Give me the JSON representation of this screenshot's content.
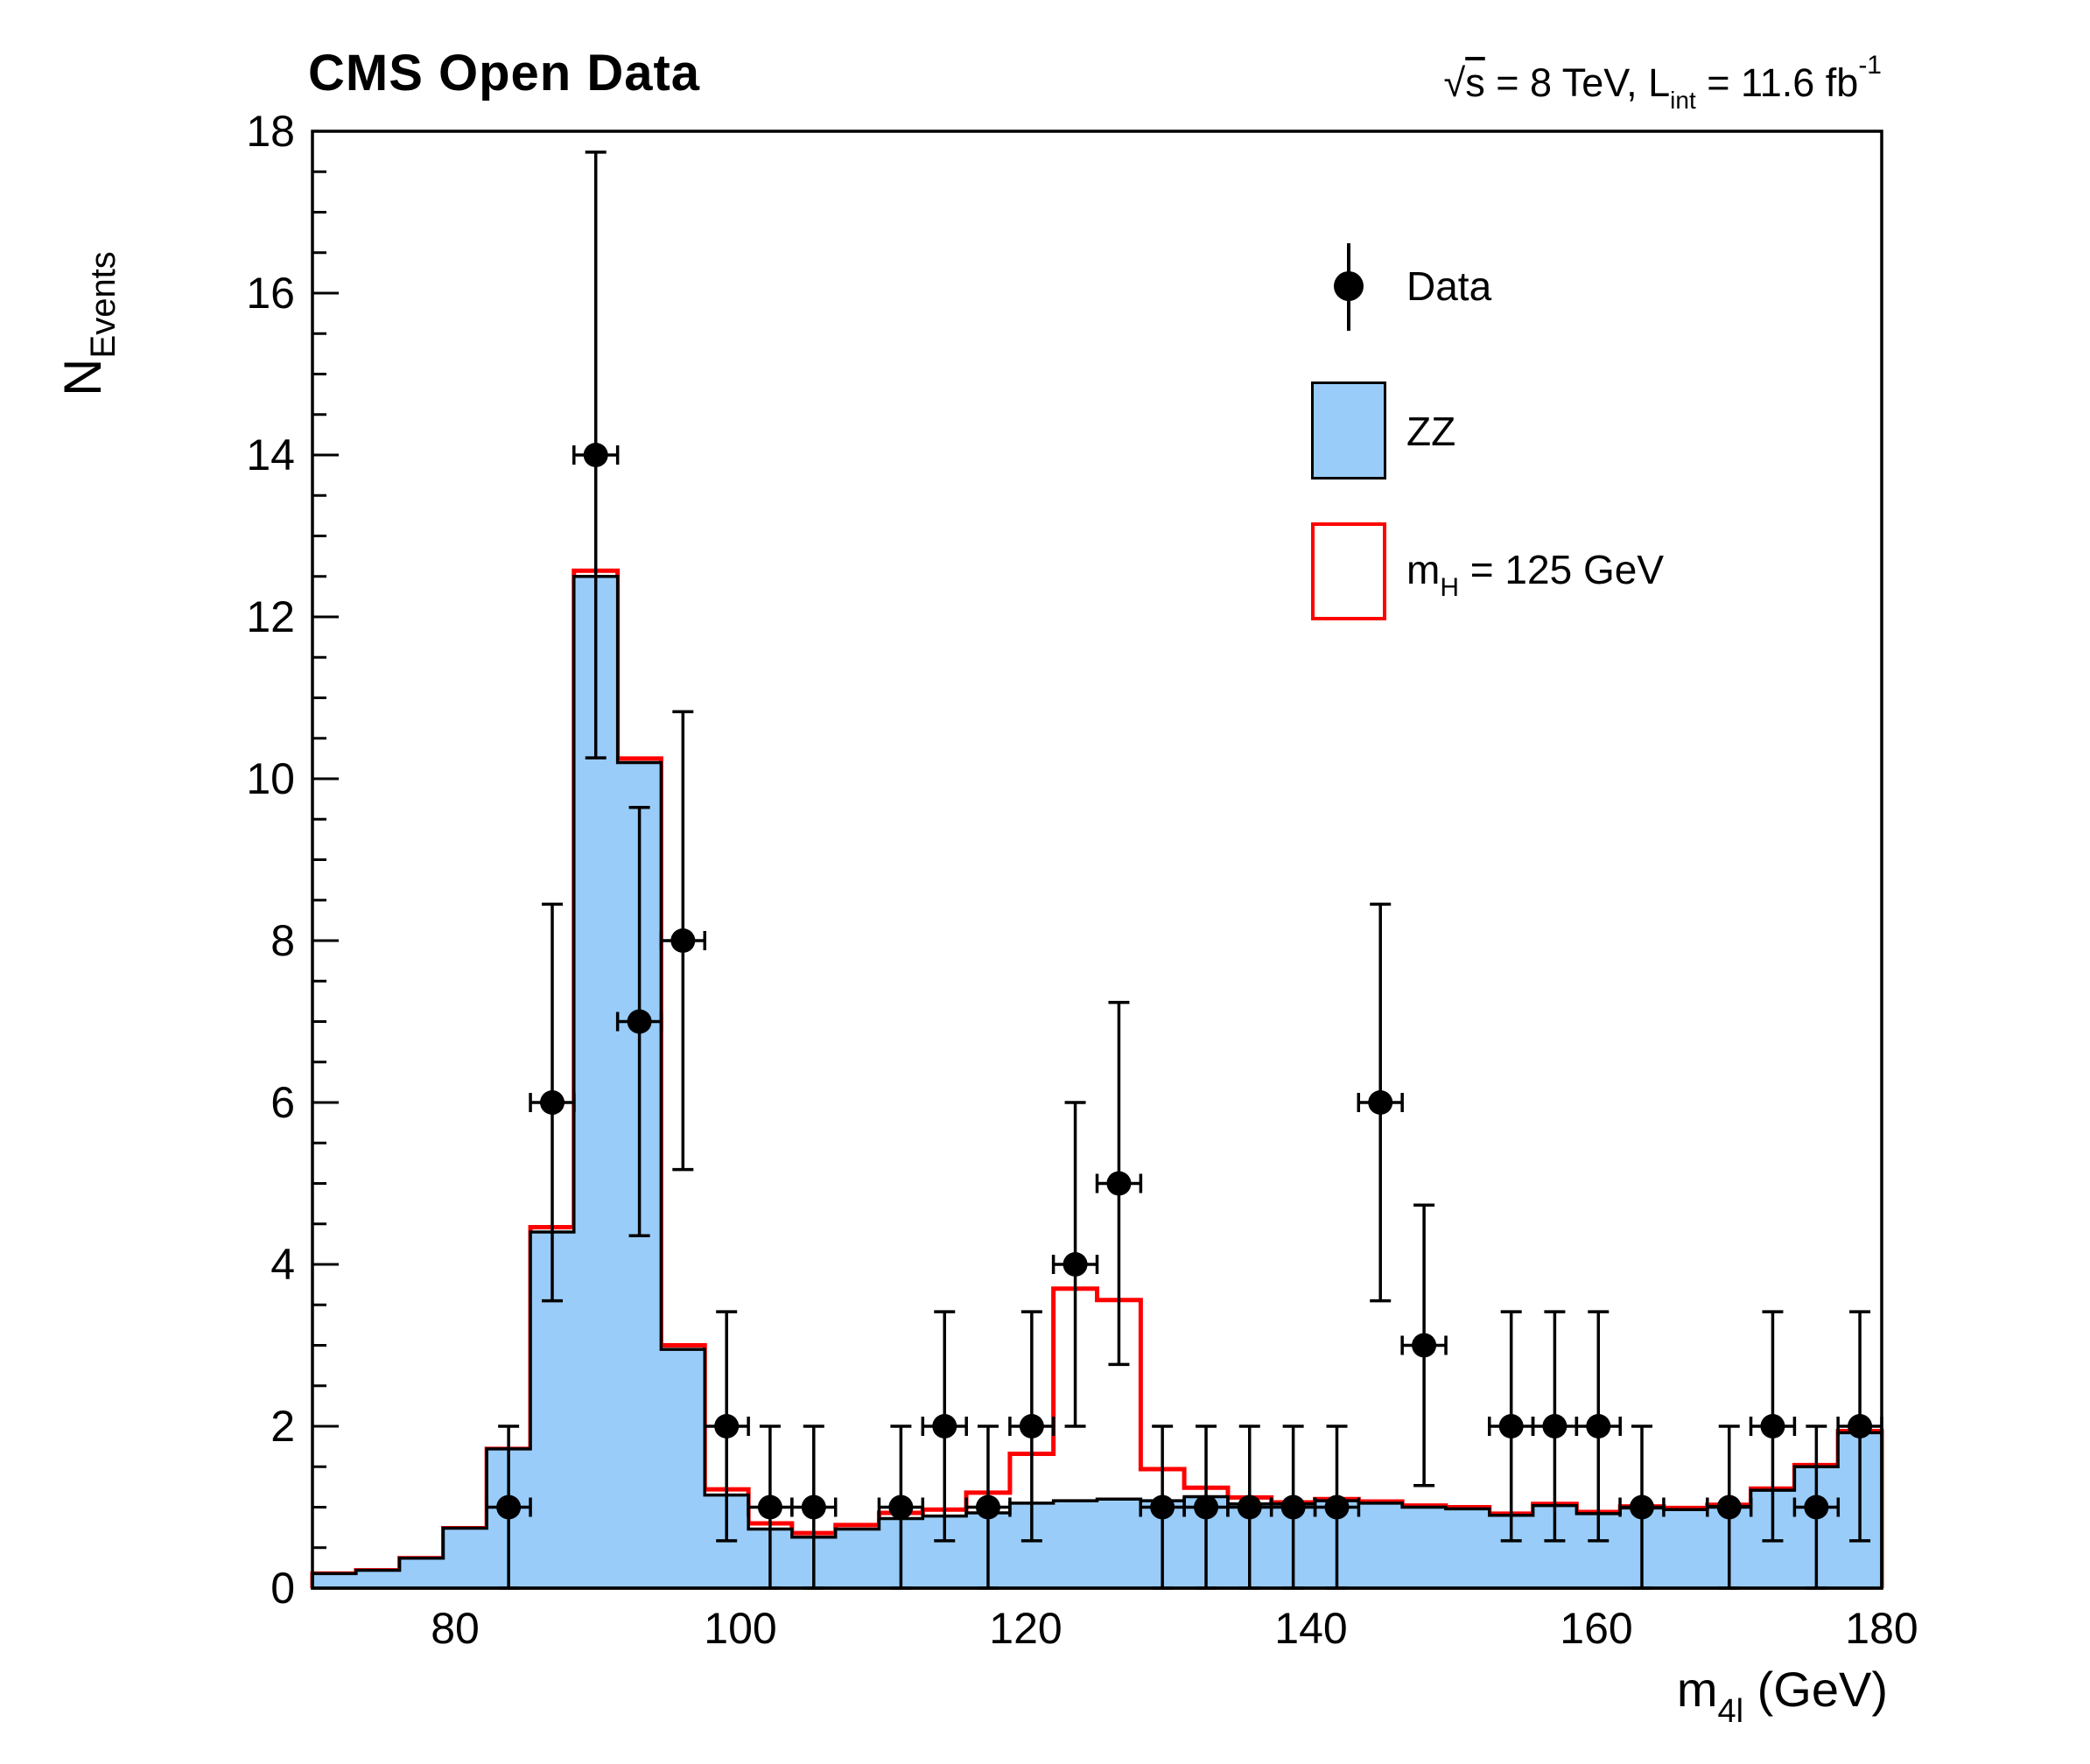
{
  "header": {
    "title": "CMS Open Data",
    "lumi": {
      "full_text": "sqrt(s) = 8 TeV, L_int = 11.6 fb^-1",
      "sqrt_sign": "√",
      "sqrt_arg": "s",
      "after_sqrt": " = 8 TeV, L",
      "sub": "int",
      "after_sub": " = 11.6 fb",
      "sup": "-1"
    }
  },
  "axes": {
    "x": {
      "label_main": "m",
      "label_sub": "4l",
      "label_tail": " (GeV)",
      "min": 70,
      "max": 180,
      "major_ticks": [
        80,
        100,
        120,
        140,
        160,
        180
      ],
      "minor_step": 4
    },
    "y": {
      "label_main": "N",
      "label_sub": "Events",
      "min": 0,
      "max": 18,
      "major_ticks": [
        0,
        2,
        4,
        6,
        8,
        10,
        12,
        14,
        16,
        18
      ],
      "minor_step": 0.5
    }
  },
  "legend": {
    "entries": [
      {
        "type": "marker",
        "label": "Data"
      },
      {
        "type": "filled-box",
        "label": "ZZ",
        "fill": "#99ccf9",
        "border": "#000000"
      },
      {
        "type": "outline-box",
        "label_main": "m",
        "label_sub": "H",
        "label_tail": " = 125 GeV",
        "fill": "#ffffff",
        "border": "#ff0000"
      }
    ]
  },
  "chart_data": {
    "type": "bar",
    "subtype": "histogram-with-data-points",
    "title": "CMS Open Data",
    "xlabel": "m_4l (GeV)",
    "ylabel": "N_Events",
    "xlim": [
      70,
      180
    ],
    "ylim": [
      0,
      18
    ],
    "grid": false,
    "legend_position": "top-right",
    "bin_edges": [
      70,
      73.06,
      76.11,
      79.17,
      82.22,
      85.28,
      88.33,
      91.39,
      94.44,
      97.5,
      100.56,
      103.61,
      106.67,
      109.72,
      112.78,
      115.83,
      118.89,
      121.94,
      125,
      128.06,
      131.11,
      134.17,
      137.22,
      140.28,
      143.33,
      146.39,
      149.44,
      152.5,
      155.56,
      158.61,
      161.67,
      164.72,
      167.78,
      170.83,
      173.89,
      176.94,
      180
    ],
    "series": [
      {
        "name": "ZZ",
        "type": "filled_histogram",
        "fill_color": "#99ccf9",
        "line_color": "#000000",
        "values": [
          0.18,
          0.22,
          0.37,
          0.74,
          1.72,
          4.4,
          12.5,
          10.2,
          2.95,
          1.15,
          0.73,
          0.63,
          0.73,
          0.86,
          0.89,
          0.93,
          1.05,
          1.08,
          1.1,
          1.08,
          1.13,
          1.04,
          1.04,
          1.08,
          1.05,
          1.0,
          0.98,
          0.9,
          1.02,
          0.92,
          0.99,
          0.97,
          1.01,
          1.21,
          1.5,
          1.92
        ]
      },
      {
        "name": "mH = 125 GeV",
        "type": "line_histogram",
        "line_color": "#ff0000",
        "values": [
          0.18,
          0.22,
          0.37,
          0.74,
          1.72,
          4.46,
          12.57,
          10.25,
          3.0,
          1.22,
          0.8,
          0.68,
          0.78,
          0.93,
          0.97,
          1.18,
          1.66,
          3.7,
          3.56,
          1.47,
          1.24,
          1.12,
          1.06,
          1.1,
          1.07,
          1.02,
          1.0,
          0.92,
          1.04,
          0.94,
          1.01,
          0.99,
          1.03,
          1.23,
          1.52,
          1.94
        ]
      },
      {
        "name": "Data",
        "type": "points",
        "color": "#000000",
        "x_half_width": 1.53,
        "y_error": "sqrt(N)",
        "points": [
          {
            "x": 83.75,
            "y": 1
          },
          {
            "x": 86.81,
            "y": 6
          },
          {
            "x": 89.86,
            "y": 14
          },
          {
            "x": 92.92,
            "y": 7
          },
          {
            "x": 95.97,
            "y": 8
          },
          {
            "x": 99.03,
            "y": 2
          },
          {
            "x": 102.08,
            "y": 1
          },
          {
            "x": 105.14,
            "y": 1
          },
          {
            "x": 111.25,
            "y": 1
          },
          {
            "x": 114.31,
            "y": 2
          },
          {
            "x": 117.36,
            "y": 1
          },
          {
            "x": 120.42,
            "y": 2
          },
          {
            "x": 123.47,
            "y": 4
          },
          {
            "x": 126.53,
            "y": 5
          },
          {
            "x": 129.58,
            "y": 1
          },
          {
            "x": 132.64,
            "y": 1
          },
          {
            "x": 135.69,
            "y": 1
          },
          {
            "x": 138.75,
            "y": 1
          },
          {
            "x": 141.81,
            "y": 1
          },
          {
            "x": 144.86,
            "y": 6
          },
          {
            "x": 147.92,
            "y": 3
          },
          {
            "x": 154.03,
            "y": 2
          },
          {
            "x": 157.08,
            "y": 2
          },
          {
            "x": 160.14,
            "y": 2
          },
          {
            "x": 163.19,
            "y": 1
          },
          {
            "x": 169.31,
            "y": 1
          },
          {
            "x": 172.36,
            "y": 2
          },
          {
            "x": 175.42,
            "y": 1
          },
          {
            "x": 178.47,
            "y": 2
          }
        ]
      }
    ]
  }
}
